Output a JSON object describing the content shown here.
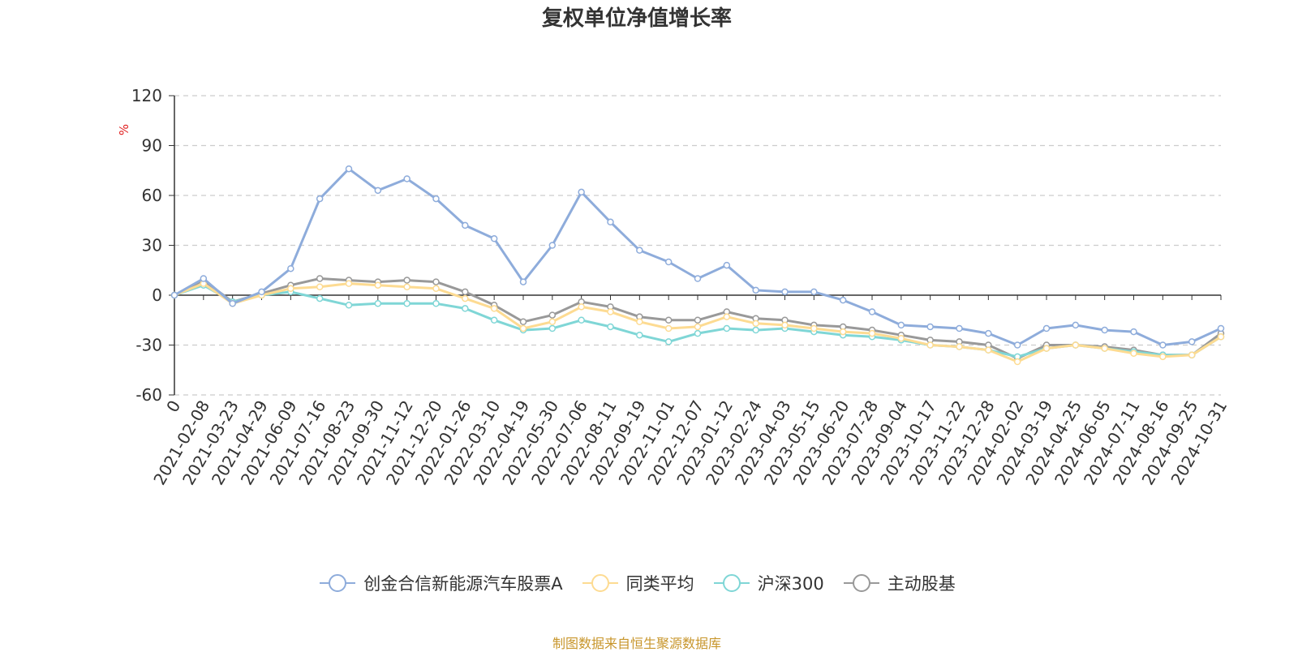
{
  "chart_data": {
    "type": "line",
    "title": "复权单位净值增长率",
    "ylabel": "%",
    "xlabel": "",
    "ylim": [
      -60,
      120
    ],
    "yticks": [
      120,
      90,
      60,
      30,
      0,
      -30,
      -60
    ],
    "grid": true,
    "legend_position": "bottom",
    "categories": [
      "0",
      "2021-02-08",
      "2021-03-23",
      "2021-04-29",
      "2021-06-09",
      "2021-07-16",
      "2021-08-23",
      "2021-09-30",
      "2021-11-12",
      "2021-12-20",
      "2022-01-26",
      "2022-03-10",
      "2022-04-19",
      "2022-05-30",
      "2022-07-06",
      "2022-08-11",
      "2022-09-19",
      "2022-11-01",
      "2022-12-07",
      "2023-01-12",
      "2023-02-24",
      "2023-04-03",
      "2023-05-15",
      "2023-06-20",
      "2023-07-28",
      "2023-09-04",
      "2023-10-17",
      "2023-11-22",
      "2023-12-28",
      "2024-02-02",
      "2024-03-19",
      "2024-04-25",
      "2024-06-05",
      "2024-07-11",
      "2024-08-16",
      "2024-09-25",
      "2024-10-31"
    ],
    "series": [
      {
        "name": "创金合信新能源汽车股票A",
        "color": "#8eacdb",
        "values": [
          0,
          10,
          -5,
          2,
          16,
          58,
          76,
          63,
          70,
          58,
          42,
          34,
          8,
          30,
          62,
          44,
          27,
          20,
          10,
          18,
          3,
          2,
          2,
          -3,
          -10,
          -18,
          -19,
          -20,
          -23,
          -30,
          -20,
          -18,
          -21,
          -22,
          -30,
          -28,
          -20
        ]
      },
      {
        "name": "同类平均",
        "color": "#fddb92",
        "values": [
          0,
          7,
          -5,
          0,
          4,
          5,
          7,
          6,
          5,
          4,
          -2,
          -8,
          -20,
          -16,
          -7,
          -10,
          -16,
          -20,
          -19,
          -13,
          -17,
          -18,
          -20,
          -22,
          -23,
          -26,
          -30,
          -31,
          -33,
          -40,
          -32,
          -30,
          -32,
          -35,
          -37,
          -36,
          -25
        ]
      },
      {
        "name": "沪深300",
        "color": "#7fd6d6",
        "values": [
          0,
          6,
          -4,
          0,
          2,
          -2,
          -6,
          -5,
          -5,
          -5,
          -8,
          -15,
          -21,
          -20,
          -15,
          -19,
          -24,
          -28,
          -23,
          -20,
          -21,
          -20,
          -22,
          -24,
          -25,
          -27,
          -30,
          -31,
          -33,
          -37,
          -32,
          -30,
          -32,
          -34,
          -36,
          -36,
          -25
        ]
      },
      {
        "name": "主动股基",
        "color": "#999999",
        "values": [
          0,
          9,
          -4,
          1,
          6,
          10,
          9,
          8,
          9,
          8,
          2,
          -6,
          -16,
          -12,
          -4,
          -7,
          -13,
          -15,
          -15,
          -10,
          -14,
          -15,
          -18,
          -19,
          -21,
          -24,
          -27,
          -28,
          -30,
          -38,
          -30,
          -30,
          -31,
          -33,
          -36,
          -36,
          -23
        ]
      }
    ]
  },
  "source_note": "制图数据来自恒生聚源数据库"
}
